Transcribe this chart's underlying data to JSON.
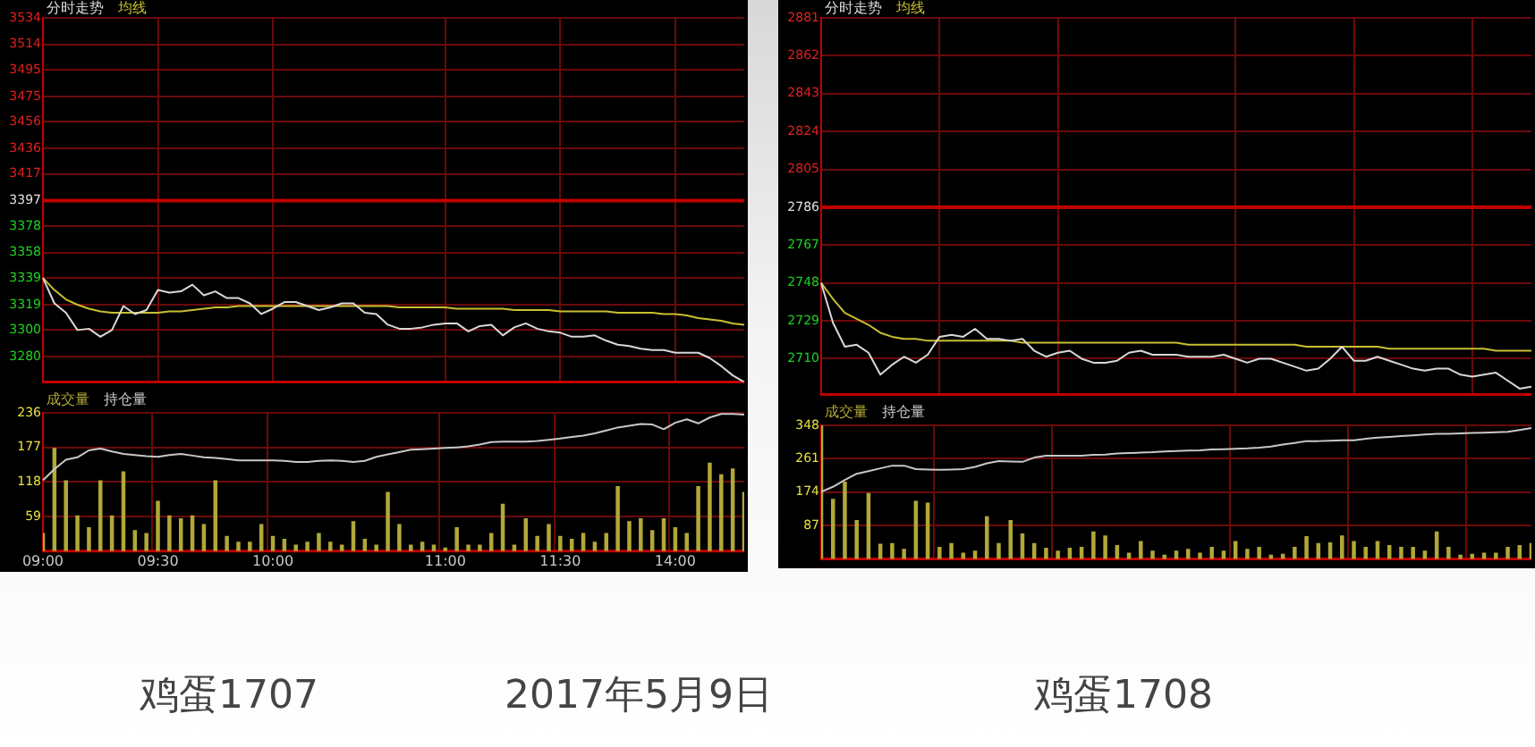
{
  "chart_data": [
    {
      "type": "line",
      "legend": "top left",
      "grid": true,
      "tick_labels": "y",
      "categories": [
        null,
        null,
        null,
        null,
        null,
        null,
        null,
        null,
        null,
        null,
        null,
        null,
        null,
        null,
        null,
        null,
        null,
        null,
        null,
        null,
        null,
        null,
        null,
        null,
        null,
        null,
        null,
        null,
        null,
        null,
        null,
        null,
        null,
        null,
        null,
        null,
        null,
        null,
        null,
        null,
        null,
        null,
        null,
        null,
        null,
        null,
        null,
        null,
        null,
        null,
        null,
        null,
        null,
        null,
        null,
        null,
        null,
        null,
        null,
        null,
        null,
        null
      ],
      "ylim": [
        3261,
        3534
      ],
      "yticks": [
        3280,
        3300,
        3319,
        3339,
        3358,
        3378,
        3397,
        3417,
        3436,
        3456,
        3475,
        3495,
        3514,
        3534
      ],
      "ref_lines": [
        {
          "axis": "y",
          "value": 3397,
          "color": "#c00000"
        }
      ],
      "series": [
        {
          "name": "分时走势",
          "color": "#d8d8d8",
          "values": [
            3339,
            3320,
            3313,
            3300,
            3301,
            3295,
            3300,
            3318,
            3312,
            3315,
            3330,
            3328,
            3329,
            3334,
            3326,
            3329,
            3324,
            3324,
            3320,
            3312,
            3316,
            3321,
            3321,
            3318,
            3315,
            3317,
            3320,
            3320,
            3313,
            3312,
            3304,
            3301,
            3301,
            3302,
            3304,
            3305,
            3305,
            3299,
            3303,
            3304,
            3296,
            3302,
            3305,
            3301,
            3299,
            3298,
            3295,
            3295,
            3296,
            3292,
            3289,
            3288,
            3286,
            3285,
            3285,
            3283,
            3283,
            3283,
            3279,
            3273,
            3266,
            3261
          ]
        },
        {
          "name": "均线",
          "color": "#c8c030",
          "values": [
            3339,
            3330,
            3323,
            3319,
            3316,
            3314,
            3313,
            3313,
            3313,
            3313,
            3313,
            3314,
            3314,
            3315,
            3316,
            3317,
            3317,
            3318,
            3318,
            3318,
            3318,
            3318,
            3318,
            3318,
            3318,
            3318,
            3318,
            3318,
            3318,
            3318,
            3318,
            3317,
            3317,
            3317,
            3317,
            3317,
            3316,
            3316,
            3316,
            3316,
            3316,
            3315,
            3315,
            3315,
            3315,
            3314,
            3314,
            3314,
            3314,
            3314,
            3313,
            3313,
            3313,
            3313,
            3312,
            3312,
            3311,
            3309,
            3308,
            3307,
            3305,
            3304
          ]
        }
      ]
    },
    {
      "type": "bar",
      "legend": "top left",
      "grid": true,
      "categories": [
        "09:00",
        null,
        null,
        null,
        null,
        null,
        null,
        null,
        null,
        null,
        "09:30",
        null,
        null,
        null,
        null,
        null,
        null,
        null,
        null,
        null,
        "10:00",
        null,
        null,
        null,
        null,
        null,
        null,
        null,
        null,
        null,
        null,
        null,
        null,
        null,
        null,
        "11:00",
        null,
        null,
        null,
        null,
        null,
        null,
        null,
        null,
        null,
        "11:30",
        null,
        null,
        null,
        null,
        null,
        null,
        null,
        null,
        null,
        "14:00",
        null,
        null,
        null,
        null,
        null,
        null
      ],
      "ylim": [
        0,
        236
      ],
      "yticks": [
        59,
        118,
        177,
        236
      ],
      "series": [
        {
          "name": "成交量",
          "color": "#b0a838",
          "values": [
            30,
            175,
            120,
            60,
            40,
            120,
            60,
            135,
            35,
            30,
            85,
            60,
            55,
            60,
            45,
            120,
            25,
            15,
            15,
            45,
            25,
            20,
            10,
            15,
            30,
            15,
            10,
            50,
            20,
            10,
            100,
            45,
            10,
            15,
            10,
            5,
            40,
            10,
            10,
            30,
            80,
            10,
            55,
            25,
            45,
            25,
            20,
            30,
            15,
            30,
            110,
            50,
            55,
            35,
            55,
            40,
            30,
            110,
            150,
            130,
            140,
            100
          ]
        },
        {
          "name": "持仓量",
          "type": "line",
          "color": "#c8c8c8",
          "values": [
            121,
            140,
            156,
            160,
            172,
            175,
            170,
            166,
            164,
            162,
            161,
            164,
            166,
            163,
            160,
            159,
            157,
            155,
            155,
            155,
            155,
            154,
            152,
            152,
            154,
            155,
            154,
            152,
            154,
            161,
            165,
            169,
            173,
            174,
            175,
            176,
            177,
            179,
            182,
            186,
            187,
            187,
            187,
            188,
            190,
            192,
            195,
            197,
            201,
            206,
            211,
            214,
            217,
            216,
            208,
            219,
            225,
            218,
            228,
            234,
            234,
            233
          ]
        }
      ]
    },
    {
      "type": "line",
      "legend": "top left",
      "grid": true,
      "tick_labels": "y",
      "categories": [
        null,
        null,
        null,
        null,
        null,
        null,
        null,
        null,
        null,
        null,
        null,
        null,
        null,
        null,
        null,
        null,
        null,
        null,
        null,
        null,
        null,
        null,
        null,
        null,
        null,
        null,
        null,
        null,
        null,
        null,
        null,
        null,
        null,
        null,
        null,
        null,
        null,
        null,
        null,
        null,
        null,
        null,
        null,
        null,
        null,
        null,
        null,
        null,
        null,
        null,
        null,
        null,
        null,
        null,
        null,
        null,
        null,
        null,
        null,
        null,
        null
      ],
      "ylim": [
        2692,
        2881
      ],
      "yticks": [
        2710,
        2729,
        2748,
        2767,
        2786,
        2805,
        2824,
        2843,
        2862,
        2881
      ],
      "ref_lines": [
        {
          "axis": "y",
          "value": 2786,
          "color": "#c00000"
        }
      ],
      "series": [
        {
          "name": "分时走势",
          "color": "#d8d8d8",
          "values": [
            2748,
            2728,
            2716,
            2717,
            2713,
            2702,
            2707,
            2711,
            2708,
            2712,
            2721,
            2722,
            2721,
            2725,
            2720,
            2720,
            2719,
            2720,
            2714,
            2711,
            2713,
            2714,
            2710,
            2708,
            2708,
            2709,
            2713,
            2714,
            2712,
            2712,
            2712,
            2711,
            2711,
            2711,
            2712,
            2710,
            2708,
            2710,
            2710,
            2708,
            2706,
            2704,
            2705,
            2710,
            2716,
            2709,
            2709,
            2711,
            2709,
            2707,
            2705,
            2704,
            2705,
            2705,
            2702,
            2701,
            2702,
            2703,
            2699,
            2695,
            2696
          ]
        },
        {
          "name": "均线",
          "color": "#c8c030",
          "values": [
            2748,
            2740,
            2733,
            2730,
            2727,
            2723,
            2721,
            2720,
            2720,
            2719,
            2719,
            2719,
            2719,
            2719,
            2719,
            2719,
            2719,
            2718,
            2718,
            2718,
            2718,
            2718,
            2718,
            2718,
            2718,
            2718,
            2718,
            2718,
            2718,
            2718,
            2718,
            2717,
            2717,
            2717,
            2717,
            2717,
            2717,
            2717,
            2717,
            2717,
            2717,
            2716,
            2716,
            2716,
            2716,
            2716,
            2716,
            2716,
            2715,
            2715,
            2715,
            2715,
            2715,
            2715,
            2715,
            2715,
            2715,
            2714,
            2714,
            2714,
            2714
          ]
        }
      ]
    },
    {
      "type": "bar",
      "legend": "top left",
      "grid": true,
      "tick_labels": "y",
      "categories": [
        null,
        null,
        null,
        null,
        null,
        null,
        null,
        null,
        null,
        null,
        null,
        null,
        null,
        null,
        null,
        null,
        null,
        null,
        null,
        null,
        null,
        null,
        null,
        null,
        null,
        null,
        null,
        null,
        null,
        null,
        null,
        null,
        null,
        null,
        null,
        null,
        null,
        null,
        null,
        null,
        null,
        null,
        null,
        null,
        null,
        null,
        null,
        null,
        null,
        null,
        null,
        null,
        null,
        null,
        null,
        null,
        null,
        null,
        null,
        null,
        null
      ],
      "ylim": [
        0,
        348
      ],
      "yticks": [
        87,
        174,
        261,
        348
      ],
      "series": [
        {
          "name": "成交量",
          "color": "#b0a838",
          "values": [
            348,
            155,
            200,
            100,
            170,
            38,
            40,
            25,
            150,
            145,
            30,
            40,
            15,
            20,
            110,
            40,
            100,
            65,
            40,
            28,
            20,
            28,
            30,
            70,
            60,
            35,
            15,
            45,
            20,
            10,
            20,
            25,
            15,
            30,
            20,
            45,
            25,
            30,
            10,
            12,
            30,
            58,
            40,
            42,
            60,
            45,
            30,
            45,
            35,
            30,
            30,
            20,
            70,
            30,
            10,
            12,
            15,
            15,
            30,
            35,
            40
          ]
        },
        {
          "name": "持仓量",
          "type": "line",
          "color": "#c8c8c8",
          "values": [
            175,
            188,
            206,
            222,
            229,
            236,
            243,
            243,
            234,
            233,
            232,
            233,
            234,
            240,
            249,
            255,
            254,
            253,
            264,
            269,
            269,
            269,
            269,
            271,
            272,
            275,
            276,
            277,
            278,
            280,
            281,
            282,
            283,
            285,
            286,
            287,
            288,
            290,
            293,
            298,
            302,
            307,
            307,
            308,
            309,
            309,
            313,
            316,
            318,
            320,
            322,
            324,
            326,
            326,
            327,
            328,
            329,
            330,
            331,
            336,
            341
          ]
        }
      ]
    },
    {
      "type": "other",
      "annotations": [
        "鸡蛋1707",
        "2017年5月9日",
        "鸡蛋1708"
      ]
    }
  ]
}
